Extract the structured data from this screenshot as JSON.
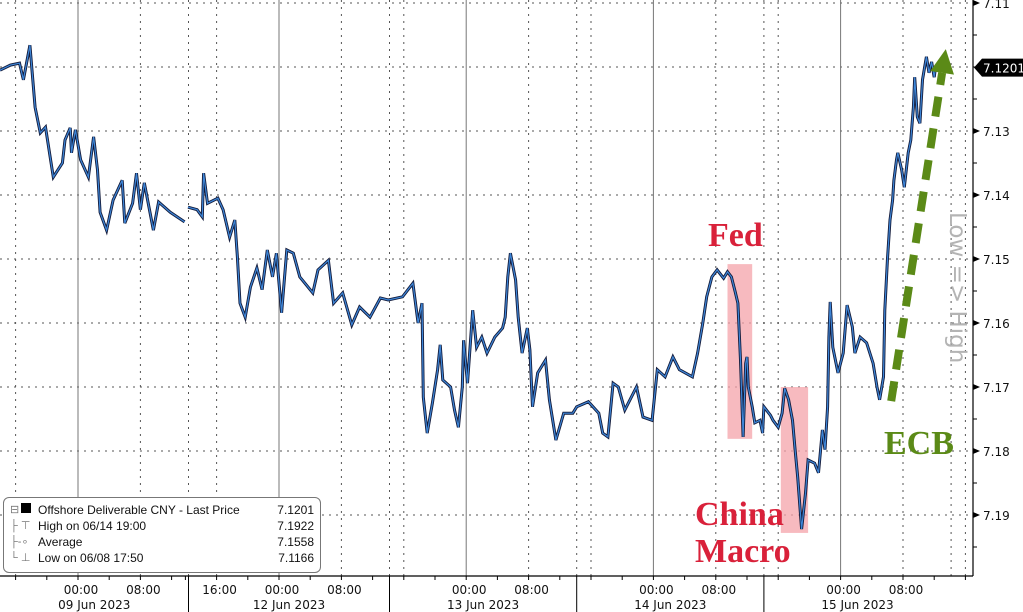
{
  "colors": {
    "line_dark": "#141c3c",
    "line_blue": "#3d86d8",
    "highlight": "#f4a3aa",
    "annotation_red": "#d9213a",
    "annotation_green": "#5b8a17",
    "axis_label_gray": "#b4b4b4",
    "grid": "#666666"
  },
  "legend": {
    "items": [
      {
        "icon": "black-square-icon",
        "label": "Offshore Deliverable CNY - Last Price",
        "value": "7.1201"
      },
      {
        "icon": "high-marker-icon",
        "label": "High on 06/14 19:00",
        "value": "7.1922"
      },
      {
        "icon": "average-marker-icon",
        "label": "Average",
        "value": "7.1558"
      },
      {
        "icon": "low-marker-icon",
        "label": "Low on 06/08 17:50",
        "value": "7.1166"
      }
    ]
  },
  "chart_data": {
    "type": "line",
    "title": "",
    "xlabel": "",
    "ylabel": "Low => High",
    "y_inverted": true,
    "ylim": [
      7.11,
      7.195
    ],
    "y_ticks": [
      "7.11",
      "7.13",
      "7.14",
      "7.15",
      "7.16",
      "7.17",
      "7.18",
      "7.19"
    ],
    "last_price_tag": "7.1201",
    "grid": true,
    "x_time_ticks": [
      {
        "time": "2023-06-09 00:00",
        "label": "00:00"
      },
      {
        "time": "2023-06-09 08:00",
        "label": "08:00"
      },
      {
        "time": "2023-06-11 16:00",
        "label": "16:00"
      },
      {
        "time": "2023-06-12 00:00",
        "label": "00:00"
      },
      {
        "time": "2023-06-12 08:00",
        "label": "08:00"
      },
      {
        "time": "2023-06-13 00:00",
        "label": "00:00"
      },
      {
        "time": "2023-06-13 08:00",
        "label": "08:00"
      },
      {
        "time": "2023-06-14 00:00",
        "label": "00:00"
      },
      {
        "time": "2023-06-14 08:00",
        "label": "08:00"
      },
      {
        "time": "2023-06-15 00:00",
        "label": "00:00"
      },
      {
        "time": "2023-06-15 08:00",
        "label": "08:00"
      }
    ],
    "x_date_labels": [
      "09 Jun 2023",
      "12 Jun 2023",
      "13 Jun 2023",
      "14 Jun 2023",
      "15 Jun 2023"
    ],
    "annotations": [
      {
        "text": "Fed",
        "color": "#d9213a",
        "highlight_from": "2023-06-14 09:30",
        "highlight_to": "2023-06-14 12:40",
        "highlight_range": [
          7.1508,
          7.1781
        ]
      },
      {
        "text": "China",
        "text2": "Macro",
        "color": "#d9213a",
        "highlight_from": "2023-06-14 16:20",
        "highlight_to": "2023-06-14 19:50",
        "highlight_range": [
          7.17,
          7.1928
        ]
      },
      {
        "text": "ECB",
        "color": "#5b8a17",
        "arrow": "dashed-up-arrow",
        "arrow_from": [
          "2023-06-15 07:00",
          7.1722
        ],
        "arrow_to": [
          "2023-06-15 14:00",
          7.1172
        ]
      }
    ],
    "series": [
      {
        "name": "Offshore Deliverable CNY - Last Price",
        "points": [
          [
            "2023-06-08 14:00",
            7.1205
          ],
          [
            "2023-06-08 15:20",
            7.1197
          ],
          [
            "2023-06-08 16:30",
            7.1194
          ],
          [
            "2023-06-08 17:00",
            7.122
          ],
          [
            "2023-06-08 17:50",
            7.1166
          ],
          [
            "2023-06-08 18:30",
            7.1263
          ],
          [
            "2023-06-08 19:10",
            7.1303
          ],
          [
            "2023-06-08 19:50",
            7.1294
          ],
          [
            "2023-06-08 20:50",
            7.1372
          ],
          [
            "2023-06-08 22:00",
            7.135
          ],
          [
            "2023-06-08 22:20",
            7.1314
          ],
          [
            "2023-06-08 23:00",
            7.1295
          ],
          [
            "2023-06-08 23:10",
            7.1334
          ],
          [
            "2023-06-08 23:40",
            7.1298
          ],
          [
            "2023-06-09 00:20",
            7.1345
          ],
          [
            "2023-06-09 01:20",
            7.1372
          ],
          [
            "2023-06-09 02:00",
            7.1309
          ],
          [
            "2023-06-09 02:30",
            7.1361
          ],
          [
            "2023-06-09 02:50",
            7.1427
          ],
          [
            "2023-06-09 03:40",
            7.1455
          ],
          [
            "2023-06-09 04:30",
            7.1408
          ],
          [
            "2023-06-09 05:40",
            7.1377
          ],
          [
            "2023-06-09 06:00",
            7.1444
          ],
          [
            "2023-06-09 07:00",
            7.1413
          ],
          [
            "2023-06-09 07:30",
            7.1366
          ],
          [
            "2023-06-09 08:00",
            7.1423
          ],
          [
            "2023-06-09 08:30",
            7.1381
          ],
          [
            "2023-06-09 09:40",
            7.1455
          ],
          [
            "2023-06-09 10:20",
            7.1411
          ],
          [
            "2023-06-09 11:50",
            7.1427
          ],
          [
            "2023-06-09 13:40",
            7.1442
          ],
          [
            "2023-06-11 12:20",
            7.1419
          ],
          [
            "2023-06-11 13:30",
            7.1423
          ],
          [
            "2023-06-11 14:10",
            7.1434
          ],
          [
            "2023-06-11 14:20",
            7.1366
          ],
          [
            "2023-06-11 14:50",
            7.1413
          ],
          [
            "2023-06-11 16:10",
            7.1405
          ],
          [
            "2023-06-11 16:50",
            7.1423
          ],
          [
            "2023-06-11 17:40",
            7.1466
          ],
          [
            "2023-06-11 18:20",
            7.1439
          ],
          [
            "2023-06-11 18:40",
            7.1497
          ],
          [
            "2023-06-11 19:00",
            7.1569
          ],
          [
            "2023-06-11 19:40",
            7.1591
          ],
          [
            "2023-06-11 20:20",
            7.1544
          ],
          [
            "2023-06-11 21:10",
            7.1514
          ],
          [
            "2023-06-11 21:50",
            7.1548
          ],
          [
            "2023-06-11 22:30",
            7.1486
          ],
          [
            "2023-06-11 23:10",
            7.1528
          ],
          [
            "2023-06-11 23:40",
            7.1491
          ],
          [
            "2023-06-12 00:20",
            7.1584
          ],
          [
            "2023-06-12 01:00",
            7.1486
          ],
          [
            "2023-06-12 01:50",
            7.1491
          ],
          [
            "2023-06-12 02:40",
            7.1528
          ],
          [
            "2023-06-12 04:20",
            7.1553
          ],
          [
            "2023-06-12 05:00",
            7.1517
          ],
          [
            "2023-06-12 06:20",
            7.1502
          ],
          [
            "2023-06-12 07:00",
            7.1569
          ],
          [
            "2023-06-12 08:10",
            7.1553
          ],
          [
            "2023-06-12 09:20",
            7.1603
          ],
          [
            "2023-06-12 10:20",
            7.1575
          ],
          [
            "2023-06-12 11:40",
            7.1591
          ],
          [
            "2023-06-12 13:00",
            7.1561
          ],
          [
            "2023-06-12 14:00",
            7.1564
          ],
          [
            "2023-06-12 15:50",
            7.1559
          ],
          [
            "2023-06-12 17:10",
            7.1538
          ],
          [
            "2023-06-12 17:50",
            7.16
          ],
          [
            "2023-06-12 18:20",
            7.1569
          ],
          [
            "2023-06-12 18:30",
            7.1716
          ],
          [
            "2023-06-12 19:00",
            7.1772
          ],
          [
            "2023-06-12 19:40",
            7.1725
          ],
          [
            "2023-06-12 20:20",
            7.1673
          ],
          [
            "2023-06-12 20:40",
            7.1634
          ],
          [
            "2023-06-12 21:00",
            7.1689
          ],
          [
            "2023-06-12 22:00",
            7.17
          ],
          [
            "2023-06-12 22:30",
            7.1736
          ],
          [
            "2023-06-12 23:00",
            7.1763
          ],
          [
            "2023-06-12 23:30",
            7.17
          ],
          [
            "2023-06-12 23:40",
            7.1627
          ],
          [
            "2023-06-13 00:10",
            7.1694
          ],
          [
            "2023-06-13 00:50",
            7.158
          ],
          [
            "2023-06-13 01:20",
            7.1638
          ],
          [
            "2023-06-13 02:00",
            7.1622
          ],
          [
            "2023-06-13 02:40",
            7.1647
          ],
          [
            "2023-06-13 03:40",
            7.1622
          ],
          [
            "2023-06-13 04:40",
            7.1608
          ],
          [
            "2023-06-13 05:00",
            7.1591
          ],
          [
            "2023-06-13 05:20",
            7.1528
          ],
          [
            "2023-06-13 05:40",
            7.1491
          ],
          [
            "2023-06-13 06:20",
            7.1533
          ],
          [
            "2023-06-13 06:40",
            7.1591
          ],
          [
            "2023-06-13 07:10",
            7.1647
          ],
          [
            "2023-06-13 07:50",
            7.1608
          ],
          [
            "2023-06-13 08:10",
            7.1642
          ],
          [
            "2023-06-13 08:30",
            7.1731
          ],
          [
            "2023-06-13 09:10",
            7.1678
          ],
          [
            "2023-06-13 10:10",
            7.1658
          ],
          [
            "2023-06-13 10:40",
            7.172
          ],
          [
            "2023-06-13 11:30",
            7.1783
          ],
          [
            "2023-06-13 12:30",
            7.1741
          ],
          [
            "2023-06-13 13:40",
            7.1741
          ],
          [
            "2023-06-13 14:10",
            7.1731
          ],
          [
            "2023-06-13 15:40",
            7.1723
          ],
          [
            "2023-06-13 17:00",
            7.1741
          ],
          [
            "2023-06-13 17:30",
            7.1772
          ],
          [
            "2023-06-13 18:10",
            7.1778
          ],
          [
            "2023-06-13 18:50",
            7.1694
          ],
          [
            "2023-06-13 19:30",
            7.17
          ],
          [
            "2023-06-13 20:20",
            7.1736
          ],
          [
            "2023-06-13 21:50",
            7.17
          ],
          [
            "2023-06-13 22:40",
            7.1747
          ],
          [
            "2023-06-13 23:50",
            7.1752
          ],
          [
            "2023-06-14 00:30",
            7.1673
          ],
          [
            "2023-06-14 01:30",
            7.1684
          ],
          [
            "2023-06-14 02:30",
            7.1653
          ],
          [
            "2023-06-14 03:20",
            7.1673
          ],
          [
            "2023-06-14 05:00",
            7.1684
          ],
          [
            "2023-06-14 05:40",
            7.1647
          ],
          [
            "2023-06-14 06:20",
            7.16
          ],
          [
            "2023-06-14 06:50",
            7.1559
          ],
          [
            "2023-06-14 07:30",
            7.1528
          ],
          [
            "2023-06-14 08:10",
            7.1517
          ],
          [
            "2023-06-14 09:00",
            7.153
          ],
          [
            "2023-06-14 09:30",
            7.152
          ],
          [
            "2023-06-14 10:00",
            7.1528
          ],
          [
            "2023-06-14 10:30",
            7.1552
          ],
          [
            "2023-06-14 10:50",
            7.1569
          ],
          [
            "2023-06-14 11:10",
            7.1658
          ],
          [
            "2023-06-14 11:30",
            7.1778
          ],
          [
            "2023-06-14 11:50",
            7.1663
          ],
          [
            "2023-06-14 12:00",
            7.1653
          ],
          [
            "2023-06-14 12:10",
            7.17
          ],
          [
            "2023-06-14 12:40",
            7.1731
          ],
          [
            "2023-06-14 13:00",
            7.1756
          ],
          [
            "2023-06-14 13:40",
            7.1752
          ],
          [
            "2023-06-14 14:00",
            7.1772
          ],
          [
            "2023-06-14 14:10",
            7.1731
          ],
          [
            "2023-06-14 15:00",
            7.1744
          ],
          [
            "2023-06-14 15:20",
            7.1752
          ],
          [
            "2023-06-14 16:00",
            7.1763
          ],
          [
            "2023-06-14 16:30",
            7.1741
          ],
          [
            "2023-06-14 16:50",
            7.1702
          ],
          [
            "2023-06-14 17:20",
            7.172
          ],
          [
            "2023-06-14 17:50",
            7.1752
          ],
          [
            "2023-06-14 18:10",
            7.1798
          ],
          [
            "2023-06-14 18:30",
            7.1841
          ],
          [
            "2023-06-14 19:00",
            7.1922
          ],
          [
            "2023-06-14 19:30",
            7.1866
          ],
          [
            "2023-06-14 19:50",
            7.1814
          ],
          [
            "2023-06-14 20:40",
            7.1819
          ],
          [
            "2023-06-14 21:10",
            7.1834
          ],
          [
            "2023-06-14 21:40",
            7.1767
          ],
          [
            "2023-06-14 22:00",
            7.1798
          ],
          [
            "2023-06-14 22:20",
            7.1731
          ],
          [
            "2023-06-14 22:30",
            7.1622
          ],
          [
            "2023-06-14 22:40",
            7.1567
          ],
          [
            "2023-06-14 23:00",
            7.1638
          ],
          [
            "2023-06-14 23:40",
            7.1678
          ],
          [
            "2023-06-15 00:20",
            7.1647
          ],
          [
            "2023-06-15 00:50",
            7.1572
          ],
          [
            "2023-06-15 01:30",
            7.1606
          ],
          [
            "2023-06-15 01:50",
            7.1647
          ],
          [
            "2023-06-15 02:30",
            7.1622
          ],
          [
            "2023-06-15 03:20",
            7.1631
          ],
          [
            "2023-06-15 04:10",
            7.1663
          ],
          [
            "2023-06-15 04:40",
            7.17
          ],
          [
            "2023-06-15 05:00",
            7.172
          ],
          [
            "2023-06-15 05:30",
            7.1684
          ],
          [
            "2023-06-15 05:40",
            7.158
          ],
          [
            "2023-06-15 06:00",
            7.1502
          ],
          [
            "2023-06-15 06:20",
            7.1439
          ],
          [
            "2023-06-15 06:40",
            7.1408
          ],
          [
            "2023-06-15 06:50",
            7.1377
          ],
          [
            "2023-06-15 07:10",
            7.1345
          ],
          [
            "2023-06-15 07:20",
            7.1334
          ],
          [
            "2023-06-15 07:50",
            7.1361
          ],
          [
            "2023-06-15 08:10",
            7.1388
          ],
          [
            "2023-06-15 08:40",
            7.1334
          ],
          [
            "2023-06-15 09:00",
            7.1314
          ],
          [
            "2023-06-15 09:20",
            7.1263
          ],
          [
            "2023-06-15 09:30",
            7.1216
          ],
          [
            "2023-06-15 09:50",
            7.1278
          ],
          [
            "2023-06-15 10:10",
            7.1288
          ],
          [
            "2023-06-15 10:30",
            7.122
          ],
          [
            "2023-06-15 11:00",
            7.1184
          ],
          [
            "2023-06-15 11:20",
            7.1209
          ],
          [
            "2023-06-15 11:40",
            7.1192
          ],
          [
            "2023-06-15 12:00",
            7.1216
          ],
          [
            "2023-06-15 12:10",
            7.1201
          ]
        ]
      }
    ]
  }
}
